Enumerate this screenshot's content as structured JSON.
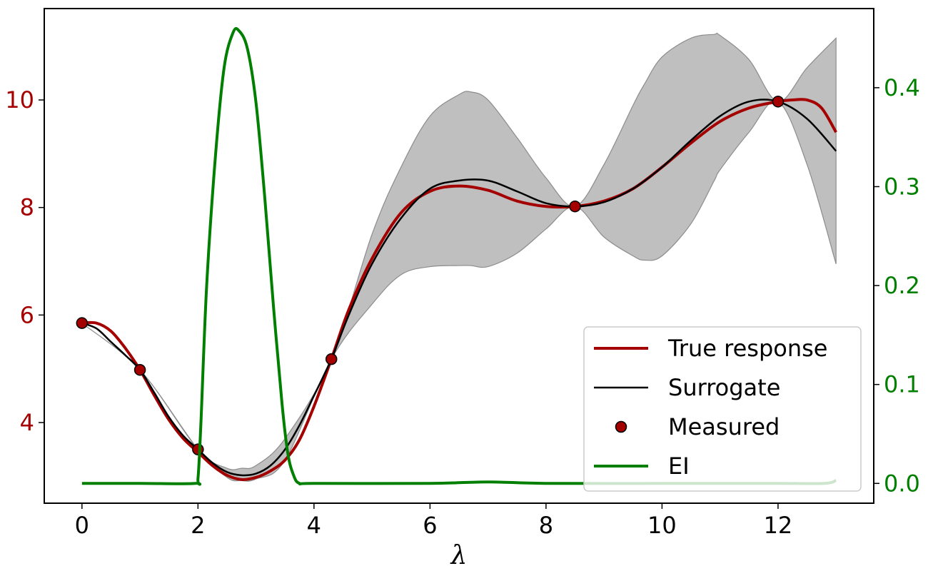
{
  "chart_data": {
    "type": "line",
    "xlabel": "λ",
    "xlim": [
      -0.65,
      13.65
    ],
    "ylim_left": [
      2.5,
      11.7
    ],
    "ylim_right": [
      -0.02,
      0.48
    ],
    "x_ticks": [
      "0",
      "2",
      "4",
      "6",
      "8",
      "10",
      "12"
    ],
    "y_ticks_left": [
      "4",
      "6",
      "8",
      "10"
    ],
    "y_ticks_right": [
      "0.0",
      "0.1",
      "0.2",
      "0.3",
      "0.4"
    ],
    "grid": false,
    "legend": {
      "placement": "lower-right",
      "entries": [
        "True response",
        "Surrogate",
        "Measured",
        "EI"
      ]
    },
    "colors": {
      "true_response": "#a50000",
      "surrogate": "#000000",
      "measured_fill": "#a50000",
      "ei": "#007f00",
      "band": "#bfbfbf",
      "left_axis": "#a50000",
      "right_axis": "#007f00"
    },
    "series": [
      {
        "name": "True response",
        "axis": "left",
        "x": [
          0,
          0.25,
          0.5,
          0.75,
          1.0,
          1.25,
          1.5,
          1.75,
          2.0,
          2.25,
          2.5,
          2.75,
          3.0,
          3.25,
          3.5,
          3.75,
          4.0,
          4.3,
          4.6,
          5.0,
          5.5,
          6.0,
          6.5,
          7.0,
          7.5,
          8.0,
          8.5,
          9.0,
          9.5,
          10.0,
          10.5,
          11.0,
          11.5,
          12.0,
          12.25,
          12.5,
          12.75,
          13.0
        ],
        "y": [
          5.85,
          5.85,
          5.7,
          5.38,
          4.98,
          4.5,
          4.05,
          3.7,
          3.45,
          3.2,
          3.02,
          2.94,
          2.98,
          3.1,
          3.3,
          3.68,
          4.3,
          5.18,
          6.1,
          7.05,
          7.9,
          8.3,
          8.4,
          8.32,
          8.12,
          8.02,
          8.02,
          8.12,
          8.35,
          8.75,
          9.2,
          9.6,
          9.85,
          9.97,
          10.0,
          10.0,
          9.85,
          9.4
        ]
      },
      {
        "name": "Surrogate",
        "axis": "left",
        "x": [
          0,
          0.25,
          0.5,
          0.75,
          1.0,
          1.25,
          1.5,
          1.75,
          2.0,
          2.25,
          2.5,
          2.75,
          3.0,
          3.25,
          3.5,
          3.75,
          4.0,
          4.3,
          4.6,
          5.0,
          5.5,
          6.0,
          6.5,
          7.0,
          7.5,
          8.0,
          8.5,
          9.0,
          9.5,
          10.0,
          10.5,
          11.0,
          11.5,
          12.0,
          12.5,
          13.0
        ],
        "y": [
          5.85,
          5.75,
          5.5,
          5.25,
          4.98,
          4.55,
          4.1,
          3.75,
          3.5,
          3.25,
          3.08,
          3.02,
          3.05,
          3.2,
          3.5,
          3.95,
          4.5,
          5.18,
          6.0,
          6.95,
          7.8,
          8.35,
          8.5,
          8.5,
          8.3,
          8.08,
          8.02,
          8.1,
          8.35,
          8.75,
          9.25,
          9.7,
          9.97,
          9.97,
          9.65,
          9.05
        ]
      },
      {
        "name": "EI",
        "axis": "right",
        "x": [
          0,
          1.0,
          1.95,
          2.0,
          2.05,
          2.15,
          2.3,
          2.45,
          2.6,
          2.7,
          2.85,
          3.0,
          3.15,
          3.3,
          3.45,
          3.55,
          3.65,
          3.75,
          4.0,
          6.0,
          7.0,
          8.0,
          10.0,
          12.0,
          12.8,
          13.0
        ],
        "y": [
          0.0,
          0.0,
          0.0,
          0.005,
          0.06,
          0.2,
          0.33,
          0.42,
          0.455,
          0.458,
          0.44,
          0.385,
          0.29,
          0.18,
          0.08,
          0.03,
          0.008,
          0.0,
          0.0,
          0.0,
          0.0015,
          0.0,
          0.0,
          0.0,
          0.0,
          0.003
        ]
      }
    ],
    "uncertainty_band": {
      "axis": "left",
      "x": [
        0,
        1.0,
        2.0,
        2.5,
        2.75,
        3.0,
        3.5,
        4.3,
        5.0,
        5.5,
        6.0,
        6.5,
        6.7,
        7.0,
        7.5,
        8.0,
        8.5,
        9.0,
        9.5,
        9.7,
        10.0,
        10.5,
        10.9,
        11.0,
        11.5,
        12.0,
        12.5,
        13.0
      ],
      "lower": [
        5.85,
        4.98,
        3.5,
        2.98,
        2.92,
        2.95,
        3.3,
        5.18,
        6.2,
        6.75,
        6.9,
        6.92,
        6.92,
        6.9,
        7.15,
        7.6,
        8.02,
        7.45,
        7.1,
        7.02,
        7.1,
        7.7,
        8.5,
        8.7,
        9.4,
        9.97,
        8.8,
        6.95
      ],
      "upper": [
        5.85,
        4.98,
        3.5,
        3.15,
        3.15,
        3.2,
        3.7,
        5.18,
        7.5,
        8.75,
        9.7,
        10.1,
        10.15,
        10.0,
        9.3,
        8.55,
        8.02,
        8.8,
        9.9,
        10.3,
        10.8,
        11.15,
        11.22,
        11.2,
        10.75,
        9.97,
        10.6,
        11.15
      ]
    },
    "measured_points": {
      "name": "Measured",
      "axis": "left",
      "x": [
        0,
        1.0,
        2.0,
        4.3,
        8.5,
        12.0
      ],
      "y": [
        5.85,
        4.98,
        3.5,
        5.18,
        8.02,
        9.97
      ]
    }
  }
}
